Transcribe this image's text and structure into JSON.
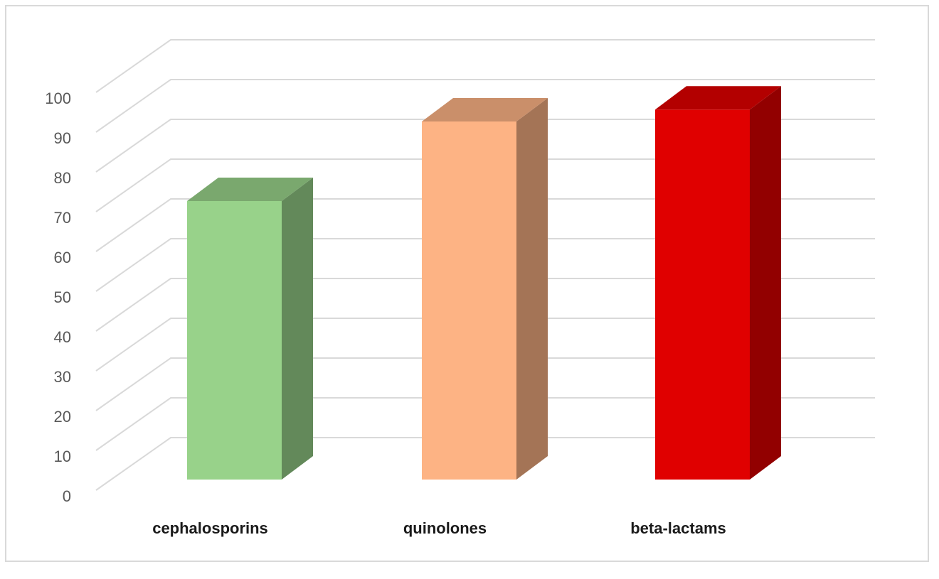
{
  "chart_data": {
    "type": "bar3d",
    "categories": [
      "cephalosporins",
      "quinolones",
      "beta-lactams"
    ],
    "values": [
      70,
      90,
      93
    ],
    "colors": [
      "#98d28a",
      "#fdb384",
      "#e00000"
    ],
    "ylim": [
      0,
      100
    ],
    "yticks": [
      0,
      10,
      20,
      30,
      40,
      50,
      60,
      70,
      80,
      90,
      100
    ],
    "grid": true
  }
}
